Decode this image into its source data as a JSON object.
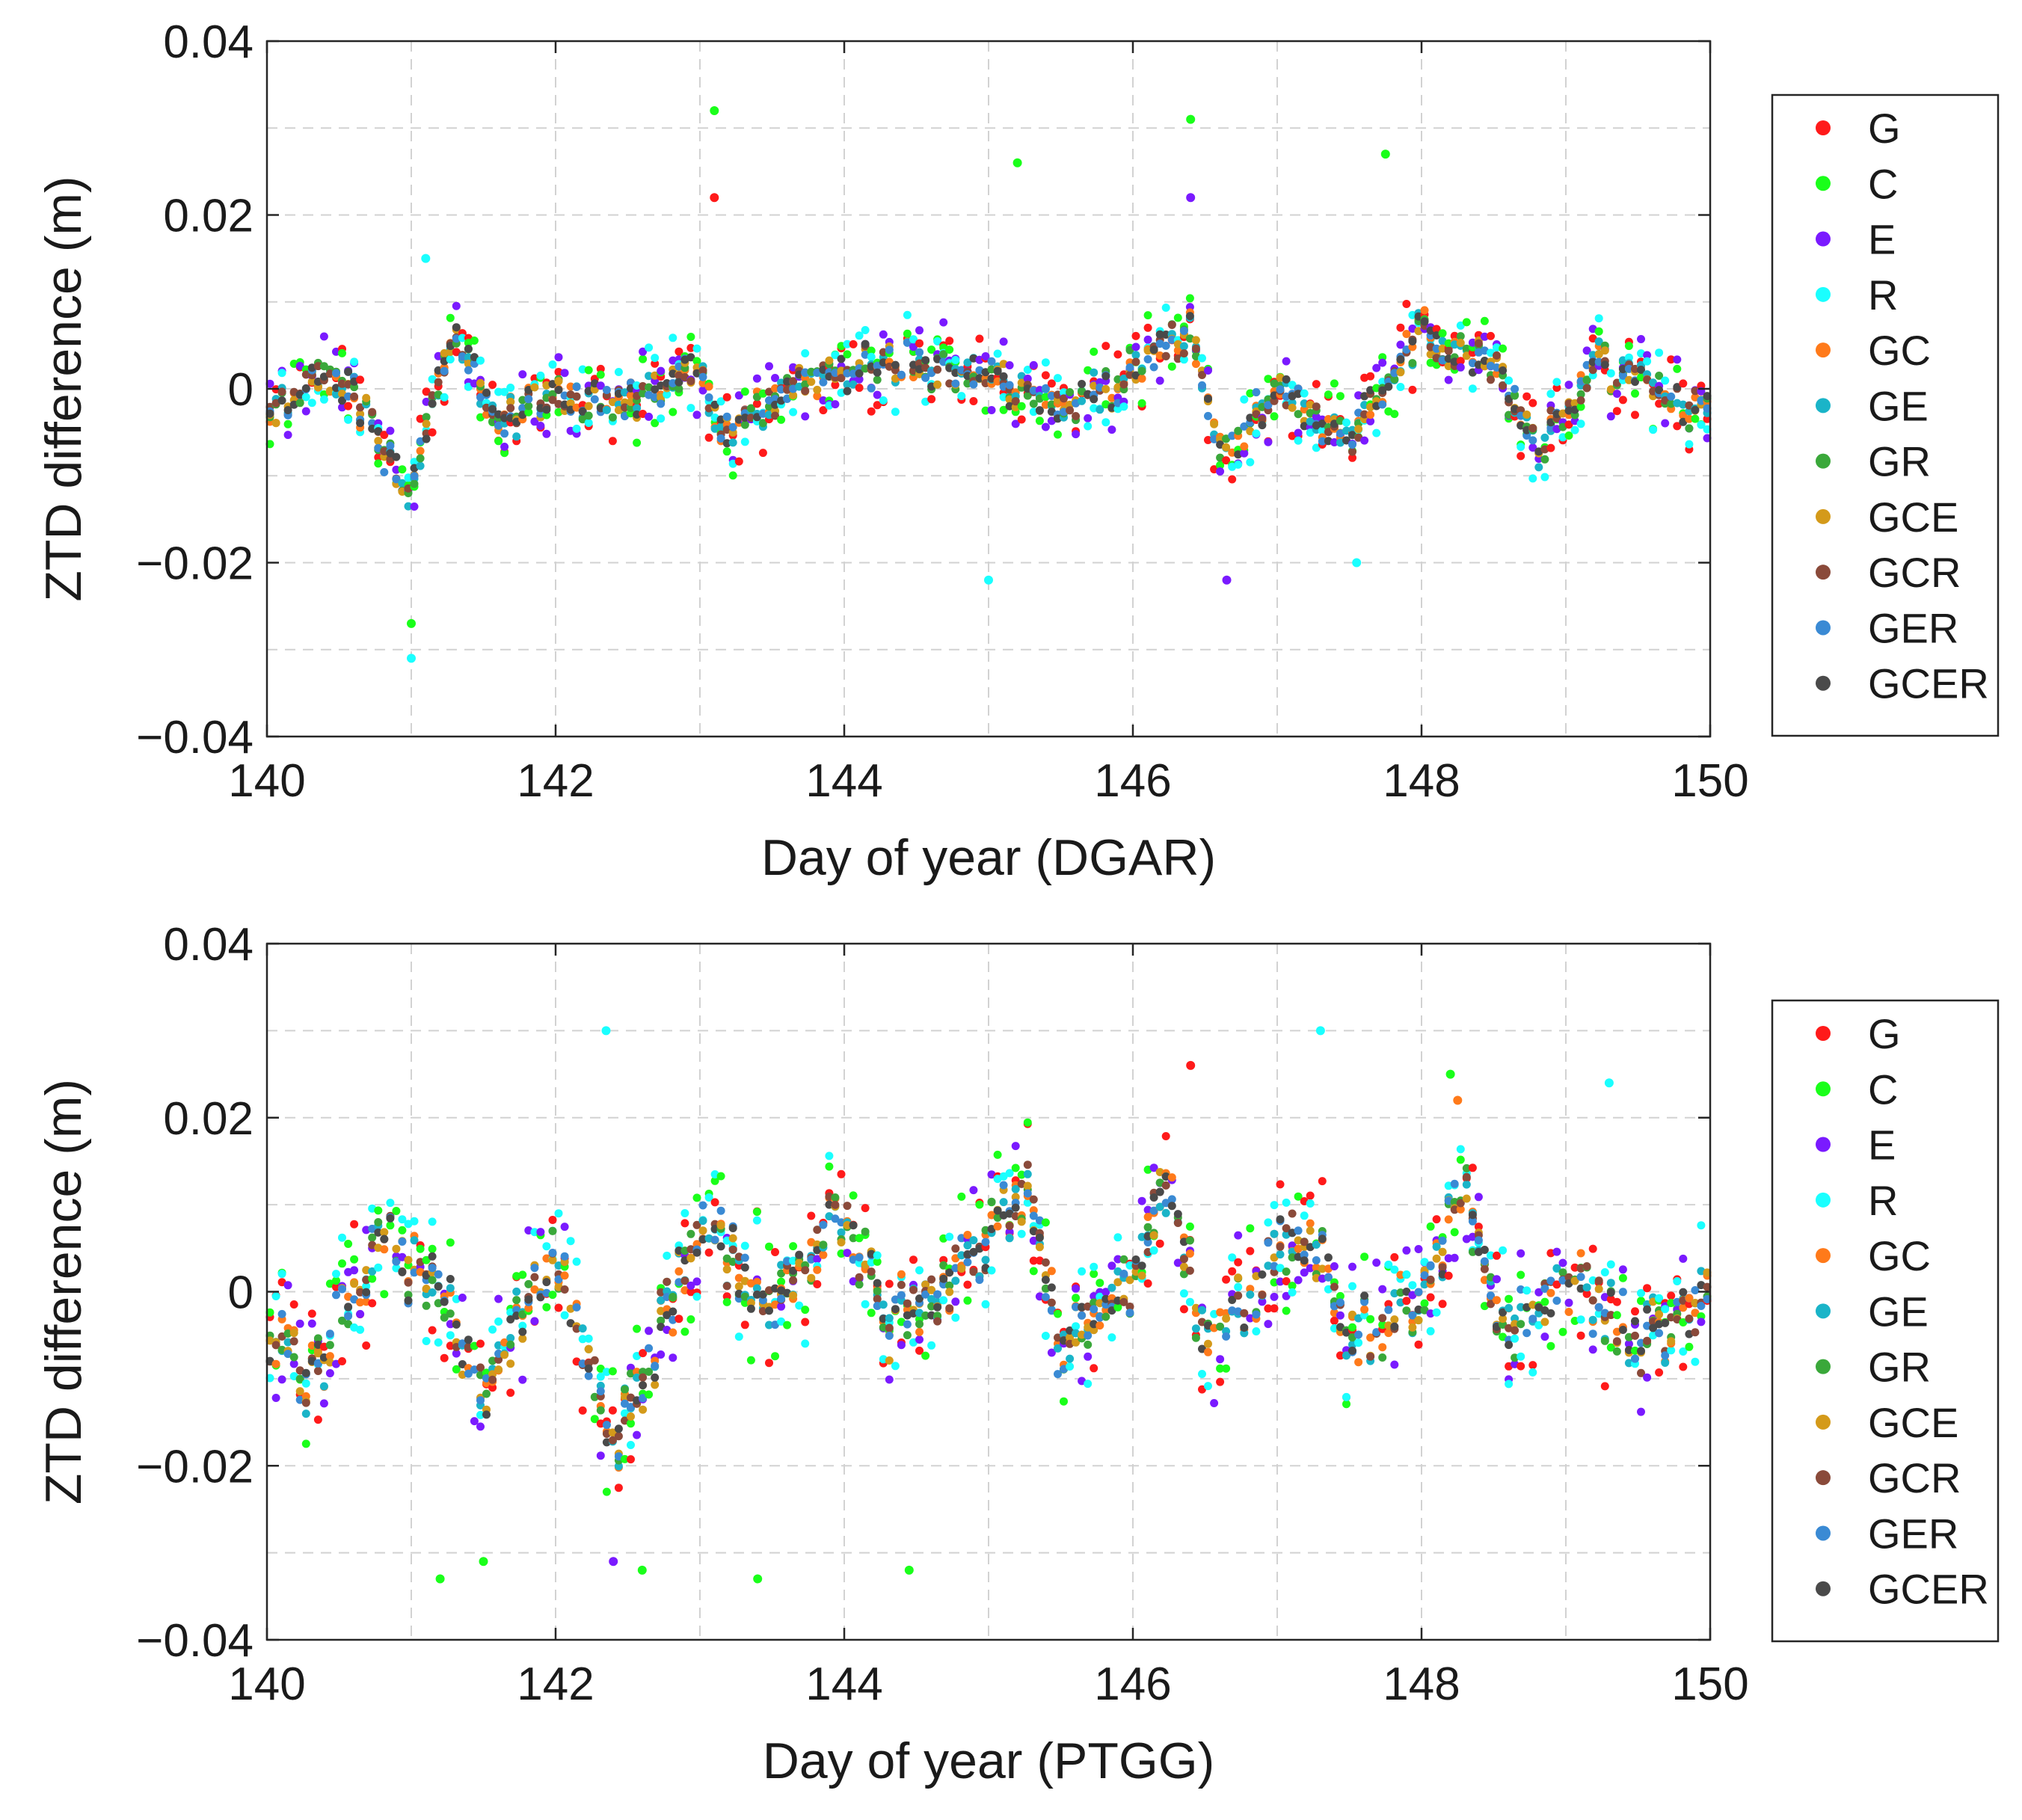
{
  "chart_data": [
    {
      "type": "scatter",
      "xlabel": "Day of year (DGAR)",
      "ylabel": "ZTD difference (m)",
      "xlim": [
        140,
        150
      ],
      "ylim": [
        -0.04,
        0.04
      ],
      "xticks": [
        140,
        142,
        144,
        146,
        148,
        150
      ],
      "xtick_labels": [
        "140",
        "142",
        "144",
        "146",
        "148",
        "150"
      ],
      "yticks": [
        0.04,
        0.02,
        0,
        -0.02,
        -0.04
      ],
      "ytick_labels": [
        "0.04",
        "0.02",
        "0",
        "−0.02",
        "−0.04"
      ],
      "grid": true,
      "legend_position": "outside-right",
      "series": [
        {
          "name": "G",
          "color": "#ff1a1a"
        },
        {
          "name": "C",
          "color": "#1aff1a"
        },
        {
          "name": "E",
          "color": "#7a1aff"
        },
        {
          "name": "R",
          "color": "#1affff"
        },
        {
          "name": "GC",
          "color": "#ff7a1a"
        },
        {
          "name": "GE",
          "color": "#1ab4c8"
        },
        {
          "name": "GR",
          "color": "#3aa83a"
        },
        {
          "name": "GCE",
          "color": "#d49a1a"
        },
        {
          "name": "GCR",
          "color": "#8a4a3a"
        },
        {
          "name": "GER",
          "color": "#3a8ad4"
        },
        {
          "name": "GCER",
          "color": "#4a4a4a"
        }
      ],
      "samples": 240,
      "noise_scale": 0.0045,
      "seed": 11,
      "baseline_anchors": [
        [
          140,
          -0.002
        ],
        [
          140.5,
          0.002
        ],
        [
          141,
          -0.012
        ],
        [
          141.3,
          0.006
        ],
        [
          141.6,
          -0.004
        ],
        [
          142,
          0.0
        ],
        [
          142.5,
          -0.002
        ],
        [
          143,
          0.002
        ],
        [
          143.2,
          -0.006
        ],
        [
          143.6,
          0.0
        ],
        [
          144,
          0.002
        ],
        [
          144.5,
          0.003
        ],
        [
          145,
          0.001
        ],
        [
          145.5,
          -0.003
        ],
        [
          146,
          0.002
        ],
        [
          146.4,
          0.006
        ],
        [
          146.6,
          -0.008
        ],
        [
          147,
          0.0
        ],
        [
          147.5,
          -0.006
        ],
        [
          148,
          0.007
        ],
        [
          148.5,
          0.002
        ],
        [
          148.8,
          -0.007
        ],
        [
          149.2,
          0.003
        ],
        [
          149.6,
          0.0
        ],
        [
          150,
          -0.003
        ]
      ],
      "outlier_points": [
        [
          141.0,
          -0.031,
          "R"
        ],
        [
          141.0,
          -0.027,
          "C"
        ],
        [
          143.1,
          0.032,
          "C"
        ],
        [
          143.1,
          0.022,
          "G"
        ],
        [
          145.2,
          0.026,
          "C"
        ],
        [
          146.4,
          0.031,
          "C"
        ],
        [
          146.4,
          0.022,
          "E"
        ],
        [
          147.75,
          0.027,
          "C"
        ],
        [
          145.0,
          -0.022,
          "R"
        ],
        [
          146.65,
          -0.022,
          "E"
        ],
        [
          147.55,
          -0.02,
          "R"
        ],
        [
          141.1,
          0.015,
          "R"
        ]
      ]
    },
    {
      "type": "scatter",
      "xlabel": "Day of year (PTGG)",
      "ylabel": "ZTD difference (m)",
      "xlim": [
        140,
        150
      ],
      "ylim": [
        -0.04,
        0.04
      ],
      "xticks": [
        140,
        142,
        144,
        146,
        148,
        150
      ],
      "xtick_labels": [
        "140",
        "142",
        "144",
        "146",
        "148",
        "150"
      ],
      "yticks": [
        0.04,
        0.02,
        0,
        -0.02,
        -0.04
      ],
      "ytick_labels": [
        "0.04",
        "0.02",
        "0",
        "−0.02",
        "−0.04"
      ],
      "grid": true,
      "legend_position": "outside-right",
      "series": [
        {
          "name": "G",
          "color": "#ff1a1a"
        },
        {
          "name": "C",
          "color": "#1aff1a"
        },
        {
          "name": "E",
          "color": "#7a1aff"
        },
        {
          "name": "R",
          "color": "#1affff"
        },
        {
          "name": "GC",
          "color": "#ff7a1a"
        },
        {
          "name": "GE",
          "color": "#1ab4c8"
        },
        {
          "name": "GR",
          "color": "#3aa83a"
        },
        {
          "name": "GCE",
          "color": "#d49a1a"
        },
        {
          "name": "GCR",
          "color": "#8a4a3a"
        },
        {
          "name": "GER",
          "color": "#3a8ad4"
        },
        {
          "name": "GCER",
          "color": "#4a4a4a"
        }
      ],
      "samples": 240,
      "noise_scale": 0.0075,
      "seed": 29,
      "baseline_anchors": [
        [
          140,
          -0.004
        ],
        [
          140.3,
          -0.01
        ],
        [
          140.8,
          0.006
        ],
        [
          141.2,
          0.0
        ],
        [
          141.5,
          -0.01
        ],
        [
          142,
          0.004
        ],
        [
          142.4,
          -0.018
        ],
        [
          142.7,
          -0.006
        ],
        [
          143,
          0.008
        ],
        [
          143.5,
          -0.002
        ],
        [
          144,
          0.01
        ],
        [
          144.3,
          -0.004
        ],
        [
          144.6,
          0.0
        ],
        [
          145,
          0.006
        ],
        [
          145.3,
          0.012
        ],
        [
          145.5,
          -0.008
        ],
        [
          146,
          0.002
        ],
        [
          146.25,
          0.014
        ],
        [
          146.5,
          -0.006
        ],
        [
          147,
          0.004
        ],
        [
          147.3,
          0.006
        ],
        [
          147.5,
          -0.006
        ],
        [
          148,
          0.0
        ],
        [
          148.3,
          0.012
        ],
        [
          148.6,
          -0.006
        ],
        [
          149,
          0.002
        ],
        [
          149.5,
          -0.006
        ],
        [
          150,
          0.0
        ]
      ],
      "outlier_points": [
        [
          142.35,
          0.03,
          "R"
        ],
        [
          147.3,
          0.03,
          "R"
        ],
        [
          146.4,
          0.026,
          "G"
        ],
        [
          148.2,
          0.025,
          "C"
        ],
        [
          148.25,
          0.022,
          "GC"
        ],
        [
          149.3,
          0.024,
          "R"
        ],
        [
          141.2,
          -0.033,
          "C"
        ],
        [
          142.4,
          -0.031,
          "E"
        ],
        [
          143.4,
          -0.033,
          "C"
        ],
        [
          144.45,
          -0.032,
          "C"
        ],
        [
          142.6,
          -0.032,
          "C"
        ],
        [
          141.5,
          -0.031,
          "C"
        ]
      ]
    }
  ]
}
